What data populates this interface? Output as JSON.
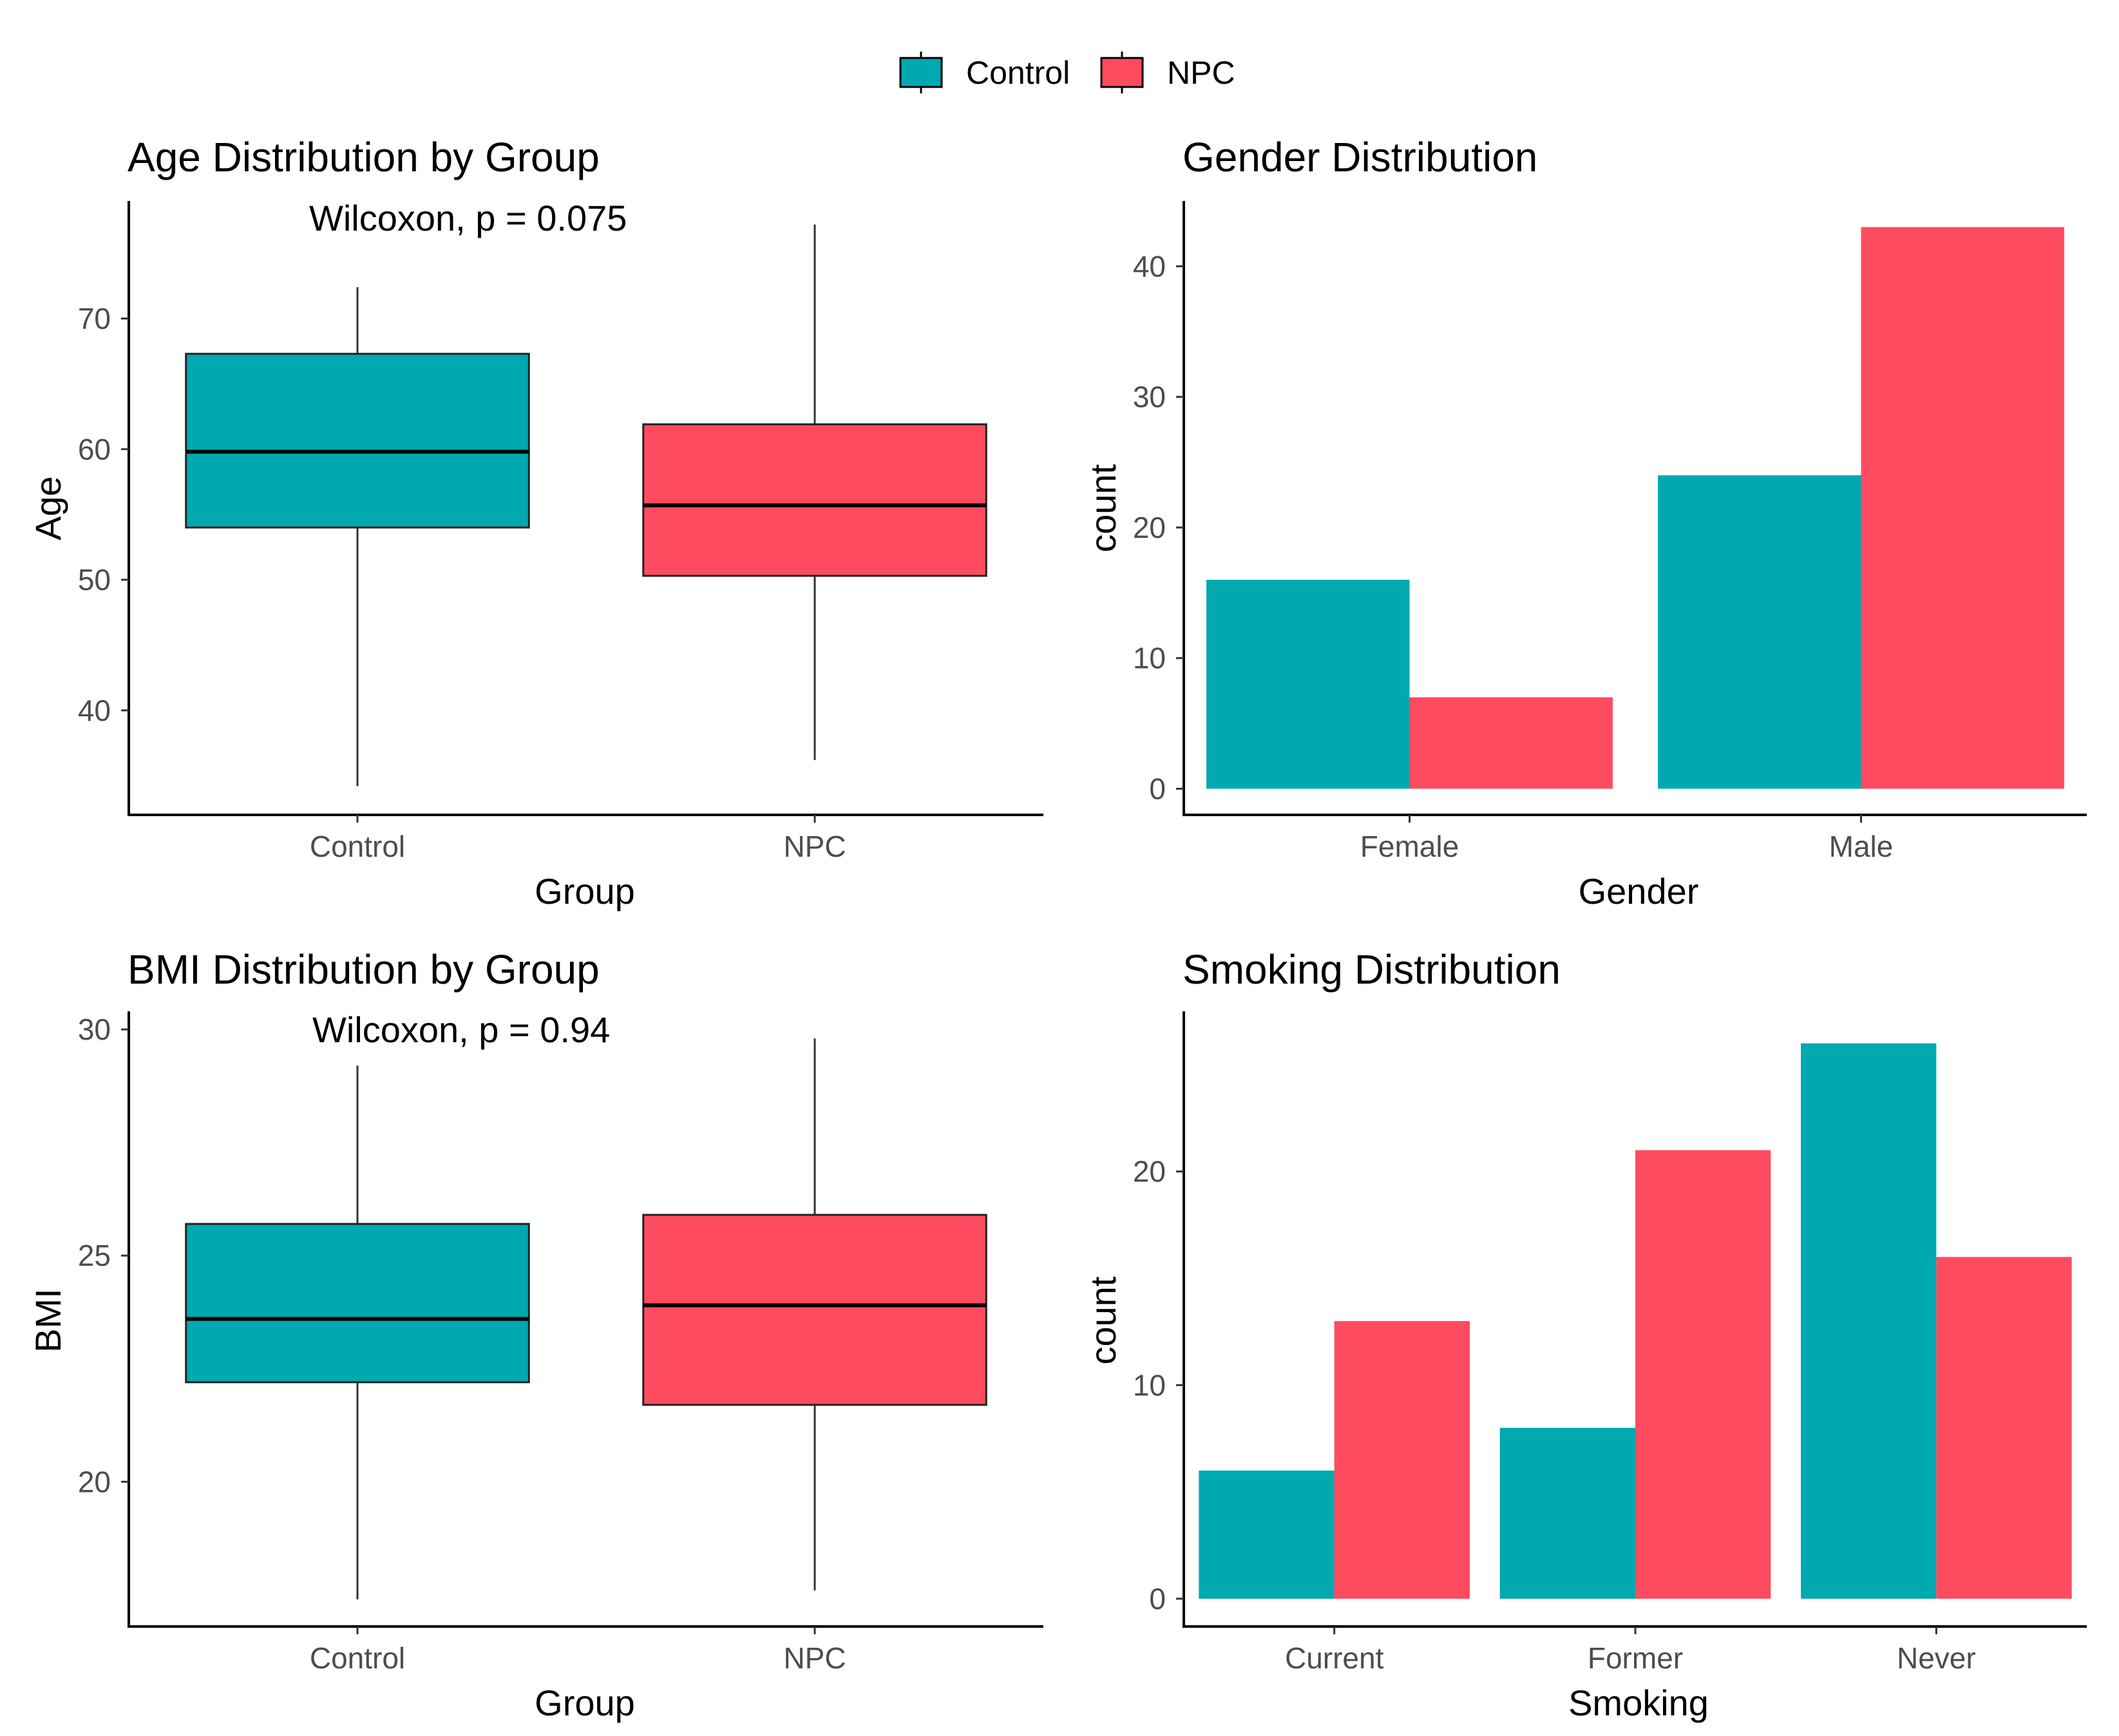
{
  "colors": {
    "control": "#00A9AF",
    "npc": "#FF4B5F",
    "outline": "#000000"
  },
  "legend": {
    "items": [
      {
        "label": "Control",
        "color_key": "control"
      },
      {
        "label": "NPC",
        "color_key": "npc"
      }
    ]
  },
  "chart_data": [
    {
      "id": "age",
      "type": "boxplot",
      "title": "Age Distribution by Group",
      "annotation": "Wilcoxon, p = 0.075",
      "xlabel": "Group",
      "ylabel": "Age",
      "categories": [
        "Control",
        "NPC"
      ],
      "ylim": [
        32,
        79
      ],
      "yticks": [
        40,
        50,
        60,
        70
      ],
      "boxes": [
        {
          "group": "Control",
          "color_key": "control",
          "min": 34.2,
          "q1": 54,
          "median": 59.8,
          "q3": 67.3,
          "max": 72.4
        },
        {
          "group": "NPC",
          "color_key": "npc",
          "min": 36.2,
          "q1": 50.3,
          "median": 55.7,
          "q3": 61.9,
          "max": 77.2
        }
      ]
    },
    {
      "id": "gender",
      "type": "bar",
      "title": "Gender Distribution",
      "xlabel": "Gender",
      "ylabel": "count",
      "categories": [
        "Female",
        "Male"
      ],
      "ylim": [
        -2,
        45
      ],
      "yticks": [
        0,
        10,
        20,
        30,
        40
      ],
      "series": [
        {
          "name": "Control",
          "color_key": "control",
          "values": [
            16,
            24
          ]
        },
        {
          "name": "NPC",
          "color_key": "npc",
          "values": [
            7,
            43
          ]
        }
      ]
    },
    {
      "id": "bmi",
      "type": "boxplot",
      "title": "BMI Distribution by Group",
      "annotation": "Wilcoxon, p = 0.94",
      "xlabel": "Group",
      "ylabel": "BMI",
      "categories": [
        "Control",
        "NPC"
      ],
      "ylim": [
        16.8,
        30.4
      ],
      "yticks": [
        20,
        25,
        30
      ],
      "boxes": [
        {
          "group": "Control",
          "color_key": "control",
          "min": 17.4,
          "q1": 22.2,
          "median": 23.6,
          "q3": 25.7,
          "max": 29.2
        },
        {
          "group": "NPC",
          "color_key": "npc",
          "min": 17.6,
          "q1": 21.7,
          "median": 23.9,
          "q3": 25.9,
          "max": 29.8
        }
      ]
    },
    {
      "id": "smoking",
      "type": "bar",
      "title": "Smoking Distribution",
      "xlabel": "Smoking",
      "ylabel": "count",
      "categories": [
        "Current",
        "Former",
        "Never"
      ],
      "ylim": [
        -1.3,
        27.5
      ],
      "yticks": [
        0,
        10,
        20
      ],
      "series": [
        {
          "name": "Control",
          "color_key": "control",
          "values": [
            6,
            8,
            26
          ]
        },
        {
          "name": "NPC",
          "color_key": "npc",
          "values": [
            13,
            21,
            16
          ]
        }
      ]
    }
  ]
}
